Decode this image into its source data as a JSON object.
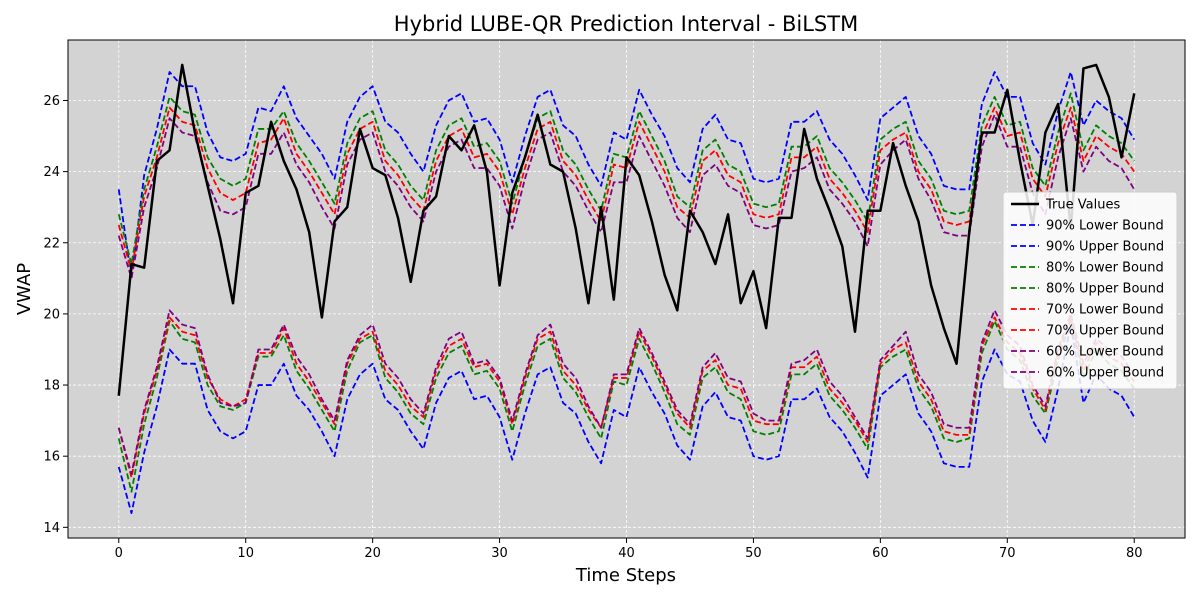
{
  "chart_data": {
    "type": "line",
    "title": "Hybrid LUBE-QR Prediction Interval - BiLSTM",
    "xlabel": "Time Steps",
    "ylabel": "VWAP",
    "xlim": [
      -4,
      84
    ],
    "ylim": [
      13.7,
      27.7
    ],
    "x_ticks": [
      0,
      10,
      20,
      30,
      40,
      50,
      60,
      70,
      80
    ],
    "y_ticks": [
      14,
      16,
      18,
      20,
      22,
      24,
      26
    ],
    "grid": true,
    "background": "#d3d3d3",
    "legend_position": "center-right",
    "x": [
      0,
      1,
      2,
      3,
      4,
      5,
      6,
      7,
      8,
      9,
      10,
      11,
      12,
      13,
      14,
      15,
      16,
      17,
      18,
      19,
      20,
      21,
      22,
      23,
      24,
      25,
      26,
      27,
      28,
      29,
      30,
      31,
      32,
      33,
      34,
      35,
      36,
      37,
      38,
      39,
      40,
      41,
      42,
      43,
      44,
      45,
      46,
      47,
      48,
      49,
      50,
      51,
      52,
      53,
      54,
      55,
      56,
      57,
      58,
      59,
      60,
      61,
      62,
      63,
      64,
      65,
      66,
      67,
      68,
      69,
      70,
      71,
      72,
      73,
      74,
      75,
      76,
      77,
      78,
      79,
      80
    ],
    "series": [
      {
        "name": "True Values",
        "color": "#000000",
        "dash": "solid",
        "width": 2.5,
        "values": [
          17.7,
          21.4,
          21.3,
          24.3,
          24.6,
          27.0,
          25.1,
          23.6,
          22.1,
          20.3,
          23.4,
          23.6,
          25.4,
          24.3,
          23.5,
          22.3,
          19.9,
          22.6,
          23.0,
          25.2,
          24.1,
          23.9,
          22.7,
          20.9,
          22.9,
          23.3,
          25.0,
          24.6,
          25.3,
          24.0,
          20.8,
          23.4,
          24.4,
          25.6,
          24.2,
          24.0,
          22.4,
          20.3,
          23.0,
          20.4,
          24.4,
          23.9,
          22.6,
          21.1,
          20.1,
          22.9,
          22.3,
          21.4,
          22.8,
          20.3,
          21.2,
          19.6,
          22.7,
          22.7,
          25.2,
          23.8,
          22.9,
          21.9,
          19.5,
          22.9,
          22.9,
          24.8,
          23.6,
          22.6,
          20.8,
          19.6,
          18.6,
          22.3,
          25.1,
          25.1,
          26.3,
          24.3,
          22.5,
          25.1,
          25.9,
          22.4,
          26.9,
          27.0,
          26.1,
          24.4,
          26.2
        ]
      },
      {
        "name": "90% Lower Bound",
        "color": "#0000ff",
        "dash": "dashed",
        "width": 1.8,
        "values": [
          15.7,
          14.4,
          16.1,
          17.4,
          19.0,
          18.6,
          18.6,
          17.3,
          16.7,
          16.5,
          16.7,
          18.0,
          18.0,
          18.6,
          17.7,
          17.3,
          16.7,
          16.0,
          17.6,
          18.3,
          18.6,
          17.6,
          17.3,
          16.7,
          16.2,
          17.5,
          18.2,
          18.4,
          17.6,
          17.7,
          17.1,
          15.9,
          17.2,
          18.3,
          18.5,
          17.5,
          17.2,
          16.4,
          15.8,
          17.3,
          17.1,
          18.5,
          17.8,
          17.2,
          16.3,
          15.9,
          17.4,
          17.8,
          17.1,
          17.0,
          16.0,
          15.9,
          16.0,
          17.6,
          17.6,
          17.9,
          17.1,
          16.7,
          16.1,
          15.4,
          17.7,
          18.0,
          18.3,
          17.2,
          16.7,
          15.8,
          15.7,
          15.7,
          18.1,
          19.0,
          18.3,
          18.1,
          17.0,
          16.4,
          17.9,
          19.7,
          17.5,
          18.3,
          17.9,
          17.7,
          17.1
        ]
      },
      {
        "name": "90% Upper Bound",
        "color": "#0000ff",
        "dash": "dashed",
        "width": 1.8,
        "values": [
          23.5,
          21.0,
          23.9,
          25.2,
          26.8,
          26.4,
          26.4,
          25.1,
          24.4,
          24.3,
          24.5,
          25.8,
          25.7,
          26.4,
          25.5,
          25.0,
          24.5,
          23.8,
          25.4,
          26.1,
          26.4,
          25.4,
          25.1,
          24.5,
          24.0,
          25.3,
          26.0,
          26.2,
          25.4,
          25.5,
          24.9,
          23.7,
          25.0,
          26.1,
          26.3,
          25.3,
          25.0,
          24.2,
          23.6,
          25.1,
          24.9,
          26.3,
          25.6,
          25.0,
          24.1,
          23.7,
          25.2,
          25.6,
          24.9,
          24.8,
          23.8,
          23.7,
          23.8,
          25.4,
          25.4,
          25.7,
          24.9,
          24.5,
          23.9,
          23.2,
          25.5,
          25.8,
          26.1,
          25.0,
          24.5,
          23.6,
          23.5,
          23.5,
          25.9,
          26.8,
          26.1,
          26.1,
          24.8,
          24.2,
          25.7,
          26.8,
          25.3,
          26.0,
          25.7,
          25.5,
          24.9
        ]
      },
      {
        "name": "80% Lower Bound",
        "color": "#008000",
        "dash": "dashed",
        "width": 1.8,
        "values": [
          16.5,
          15.0,
          16.9,
          18.2,
          19.8,
          19.3,
          19.2,
          18.0,
          17.4,
          17.3,
          17.5,
          18.8,
          18.8,
          19.4,
          18.4,
          17.9,
          17.3,
          16.7,
          18.4,
          19.2,
          19.4,
          18.2,
          17.8,
          17.2,
          16.9,
          18.2,
          18.9,
          19.1,
          18.3,
          18.4,
          17.9,
          16.7,
          18.0,
          19.1,
          19.3,
          18.2,
          17.8,
          17.1,
          16.5,
          18.1,
          18.0,
          19.3,
          18.6,
          17.8,
          16.9,
          16.6,
          18.2,
          18.5,
          17.8,
          17.6,
          16.7,
          16.6,
          16.7,
          18.3,
          18.3,
          18.6,
          17.7,
          17.3,
          16.8,
          16.2,
          18.5,
          18.8,
          19.0,
          17.9,
          17.4,
          16.5,
          16.4,
          16.5,
          18.9,
          19.8,
          19.0,
          18.7,
          17.7,
          17.2,
          18.7,
          19.8,
          18.2,
          19.0,
          18.6,
          18.4,
          17.9
        ]
      },
      {
        "name": "80% Upper Bound",
        "color": "#008000",
        "dash": "dashed",
        "width": 1.8,
        "values": [
          22.8,
          21.4,
          23.5,
          24.7,
          26.1,
          25.7,
          25.6,
          24.4,
          23.8,
          23.6,
          23.8,
          25.2,
          25.2,
          25.7,
          24.8,
          24.3,
          23.7,
          23.1,
          24.8,
          25.5,
          25.7,
          24.6,
          24.2,
          23.6,
          23.2,
          24.6,
          25.3,
          25.5,
          24.7,
          24.8,
          24.3,
          23.1,
          24.4,
          25.5,
          25.7,
          24.6,
          24.2,
          23.5,
          22.9,
          24.5,
          24.4,
          25.7,
          25.0,
          24.3,
          23.3,
          23.0,
          24.6,
          24.9,
          24.2,
          24.0,
          23.1,
          23.0,
          23.1,
          24.7,
          24.7,
          25.0,
          24.1,
          23.7,
          23.2,
          22.6,
          24.9,
          25.2,
          25.4,
          24.3,
          23.8,
          22.9,
          22.8,
          22.9,
          25.3,
          26.1,
          25.3,
          25.4,
          24.1,
          23.6,
          25.1,
          26.2,
          24.6,
          25.3,
          25.0,
          24.8,
          24.3
        ]
      },
      {
        "name": "70% Lower Bound",
        "color": "#ff0000",
        "dash": "dashed",
        "width": 1.8,
        "values": [
          16.8,
          15.4,
          17.2,
          18.4,
          19.9,
          19.5,
          19.4,
          18.2,
          17.6,
          17.4,
          17.6,
          18.9,
          18.9,
          19.6,
          18.6,
          18.1,
          17.5,
          16.9,
          18.6,
          19.3,
          19.5,
          18.4,
          18.0,
          17.4,
          17.1,
          18.4,
          19.1,
          19.3,
          18.5,
          18.6,
          18.1,
          16.9,
          18.2,
          19.3,
          19.5,
          18.4,
          18.0,
          17.3,
          16.8,
          18.2,
          18.2,
          19.5,
          18.8,
          18.0,
          17.2,
          16.8,
          18.4,
          18.7,
          18.0,
          17.9,
          17.0,
          16.9,
          16.9,
          18.5,
          18.5,
          18.8,
          17.9,
          17.5,
          17.0,
          16.4,
          18.6,
          19.0,
          19.2,
          18.1,
          17.6,
          16.7,
          16.6,
          16.6,
          19.1,
          19.9,
          19.2,
          18.9,
          17.9,
          17.3,
          18.9,
          19.9,
          18.4,
          19.2,
          18.8,
          18.6,
          18.1
        ]
      },
      {
        "name": "70% Upper Bound",
        "color": "#ff0000",
        "dash": "dashed",
        "width": 1.8,
        "values": [
          22.5,
          21.2,
          23.3,
          24.4,
          25.8,
          25.4,
          25.3,
          24.1,
          23.4,
          23.2,
          23.4,
          24.8,
          24.9,
          25.5,
          24.5,
          24.0,
          23.4,
          22.8,
          24.5,
          25.2,
          25.4,
          24.3,
          23.9,
          23.3,
          22.9,
          24.3,
          25.0,
          25.2,
          24.4,
          24.5,
          24.0,
          22.8,
          24.1,
          25.2,
          25.4,
          24.3,
          23.9,
          23.2,
          22.6,
          24.2,
          24.1,
          25.4,
          24.7,
          24.0,
          23.0,
          22.7,
          24.3,
          24.6,
          23.9,
          23.7,
          22.8,
          22.7,
          22.8,
          24.4,
          24.4,
          24.7,
          23.8,
          23.4,
          22.9,
          22.3,
          24.6,
          24.9,
          25.1,
          24.0,
          23.5,
          22.6,
          22.5,
          22.6,
          25.0,
          25.8,
          25.0,
          25.1,
          23.8,
          23.3,
          24.8,
          25.8,
          24.3,
          25.0,
          24.7,
          24.5,
          24.0
        ]
      },
      {
        "name": "60% Lower Bound",
        "color": "#800080",
        "dash": "dashed",
        "width": 1.8,
        "values": [
          16.8,
          15.5,
          17.3,
          18.5,
          20.1,
          19.7,
          19.6,
          18.3,
          17.5,
          17.4,
          17.5,
          19.0,
          19.0,
          19.7,
          18.8,
          18.3,
          17.6,
          17.0,
          18.7,
          19.4,
          19.7,
          18.6,
          18.2,
          17.6,
          17.2,
          18.5,
          19.3,
          19.5,
          18.6,
          18.7,
          18.2,
          17.0,
          18.3,
          19.4,
          19.7,
          18.6,
          18.2,
          17.4,
          16.8,
          18.3,
          18.3,
          19.6,
          18.9,
          18.1,
          17.3,
          16.9,
          18.5,
          18.9,
          18.2,
          18.1,
          17.2,
          17.0,
          17.0,
          18.6,
          18.7,
          19.0,
          18.1,
          17.7,
          17.1,
          16.5,
          18.7,
          19.1,
          19.5,
          18.3,
          17.8,
          16.9,
          16.8,
          16.8,
          19.2,
          20.1,
          19.4,
          19.1,
          18.0,
          17.4,
          19.0,
          20.0,
          18.6,
          19.3,
          19.0,
          18.8,
          18.3
        ]
      },
      {
        "name": "60% Upper Bound",
        "color": "#800080",
        "dash": "dashed",
        "width": 1.8,
        "values": [
          22.2,
          21.0,
          23.0,
          24.1,
          25.5,
          25.1,
          25.0,
          23.7,
          22.9,
          22.8,
          23.0,
          24.5,
          24.5,
          25.1,
          24.2,
          23.7,
          23.0,
          22.4,
          24.2,
          24.9,
          25.1,
          24.0,
          23.6,
          23.0,
          22.6,
          24.0,
          24.7,
          24.9,
          24.1,
          24.1,
          23.6,
          22.4,
          23.8,
          24.9,
          25.1,
          24.0,
          23.6,
          22.9,
          22.3,
          23.7,
          23.7,
          25.0,
          24.3,
          23.6,
          22.7,
          22.3,
          23.9,
          24.2,
          23.6,
          23.4,
          22.5,
          22.4,
          22.5,
          24.0,
          24.1,
          24.4,
          23.5,
          23.1,
          22.6,
          21.9,
          24.2,
          24.6,
          24.9,
          23.8,
          23.2,
          22.3,
          22.2,
          22.2,
          24.7,
          25.6,
          24.7,
          24.7,
          23.4,
          22.8,
          24.4,
          25.5,
          24.0,
          24.7,
          24.3,
          24.1,
          23.5
        ]
      }
    ]
  }
}
